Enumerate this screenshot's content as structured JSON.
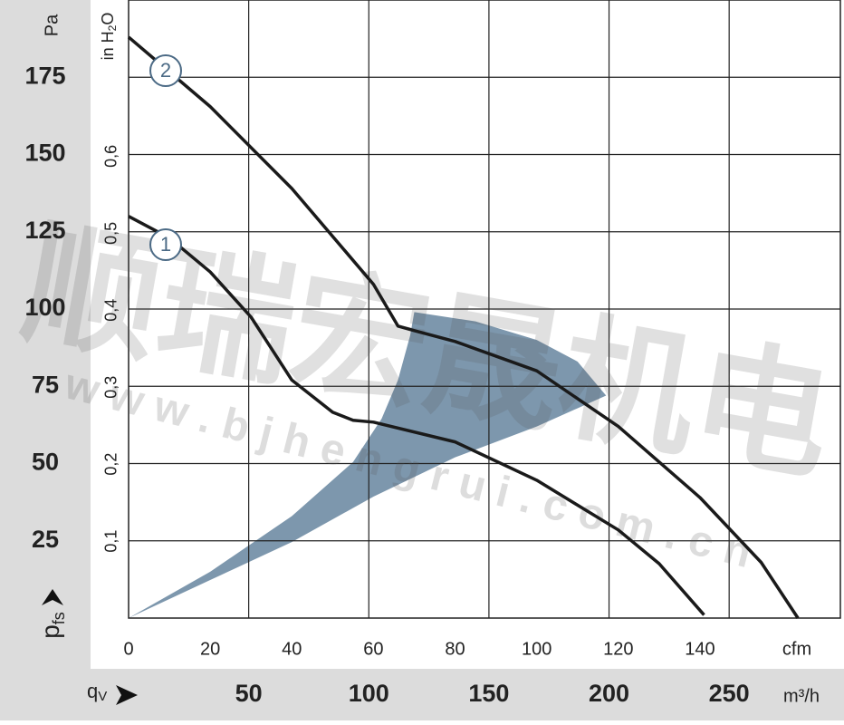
{
  "chart_data": {
    "type": "line",
    "xlim": [
      0,
      174.4
    ],
    "xticks": [
      0,
      20,
      40,
      60,
      80,
      100,
      120,
      140
    ],
    "x_unit": "cfm",
    "x2lim": [
      0,
      296.3
    ],
    "x2ticks": [
      50,
      100,
      150,
      200,
      250
    ],
    "x2_unit": "m³/h",
    "ylim": [
      0,
      200
    ],
    "yticks": [
      25,
      50,
      75,
      100,
      125,
      150,
      175
    ],
    "y_unit": "Pa",
    "y2lim": [
      0,
      0.803
    ],
    "y2ticks": [
      {
        "value": 0.1,
        "label": "0,1"
      },
      {
        "value": 0.2,
        "label": "0,2"
      },
      {
        "value": 0.3,
        "label": "0,3"
      },
      {
        "value": 0.4,
        "label": "0,4"
      },
      {
        "value": 0.5,
        "label": "0,5"
      },
      {
        "value": 0.6,
        "label": "0,6"
      }
    ],
    "y2_unit": [
      "in H",
      "2",
      "O"
    ],
    "y_label": [
      "p",
      "fs"
    ],
    "x_label": [
      "q",
      "V"
    ],
    "grid": true,
    "series": [
      {
        "name": "1",
        "color": "#1a1a1a",
        "x": [
          0,
          10,
          20,
          30,
          40,
          50,
          55,
          60,
          80,
          100,
          120,
          130,
          141
        ],
        "values": [
          130,
          123,
          112,
          97.4,
          77,
          66.6,
          64,
          63.4,
          57,
          44.6,
          28.5,
          17.6,
          1
        ]
      },
      {
        "name": "2",
        "color": "#1a1a1a",
        "x": [
          0,
          20,
          40,
          60,
          66,
          70,
          80,
          100,
          120,
          140,
          155,
          164
        ],
        "values": [
          188,
          165.5,
          139,
          108,
          94.5,
          93,
          89.5,
          80,
          62,
          39,
          18,
          0
        ]
      }
    ],
    "region": {
      "color": "#7d97ad",
      "x": [
        0,
        20,
        40,
        60,
        80,
        100,
        117,
        110,
        100,
        85,
        70,
        69,
        66,
        62,
        55,
        40,
        20
      ],
      "y": [
        0,
        12.3,
        24.6,
        39.3,
        52,
        62,
        72,
        83,
        90,
        96,
        99,
        91.5,
        77,
        64.5,
        50.5,
        33,
        15
      ]
    },
    "watermark": [
      "顺瑞宏晟机电",
      "w w w . b j h e n g r u i . c o m . c n"
    ]
  }
}
